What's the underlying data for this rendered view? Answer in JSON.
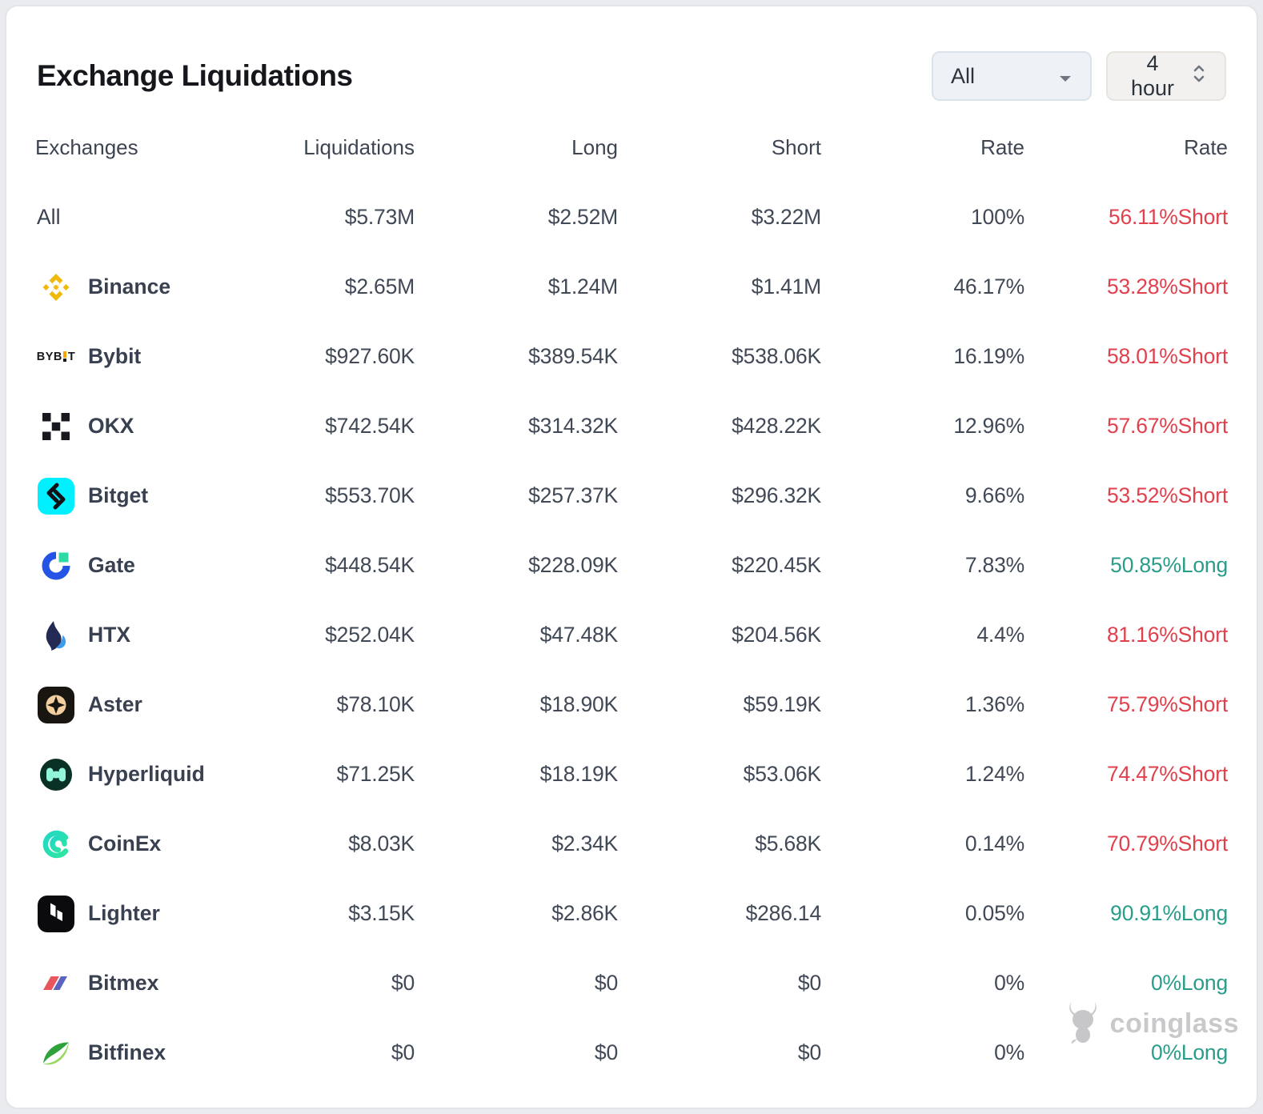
{
  "card": {
    "title": "Exchange Liquidations"
  },
  "controls": {
    "pair_select": {
      "label": "All",
      "icon": "caret-down-icon"
    },
    "interval_select": {
      "label": "4 hour",
      "icon": "select-arrows-icon"
    }
  },
  "table": {
    "columns": [
      "Exchanges",
      "Liquidations",
      "Long",
      "Short",
      "Rate",
      "Rate"
    ],
    "rows": [
      {
        "name": "All",
        "icon": null,
        "liquidations": "$5.73M",
        "long": "$2.52M",
        "short": "$3.22M",
        "rate": "100%",
        "dominance": "56.11%Short",
        "side": "short"
      },
      {
        "name": "Binance",
        "icon": "binance-icon",
        "liquidations": "$2.65M",
        "long": "$1.24M",
        "short": "$1.41M",
        "rate": "46.17%",
        "dominance": "53.28%Short",
        "side": "short"
      },
      {
        "name": "Bybit",
        "icon": "bybit-icon",
        "liquidations": "$927.60K",
        "long": "$389.54K",
        "short": "$538.06K",
        "rate": "16.19%",
        "dominance": "58.01%Short",
        "side": "short"
      },
      {
        "name": "OKX",
        "icon": "okx-icon",
        "liquidations": "$742.54K",
        "long": "$314.32K",
        "short": "$428.22K",
        "rate": "12.96%",
        "dominance": "57.67%Short",
        "side": "short"
      },
      {
        "name": "Bitget",
        "icon": "bitget-icon",
        "liquidations": "$553.70K",
        "long": "$257.37K",
        "short": "$296.32K",
        "rate": "9.66%",
        "dominance": "53.52%Short",
        "side": "short"
      },
      {
        "name": "Gate",
        "icon": "gate-icon",
        "liquidations": "$448.54K",
        "long": "$228.09K",
        "short": "$220.45K",
        "rate": "7.83%",
        "dominance": "50.85%Long",
        "side": "long"
      },
      {
        "name": "HTX",
        "icon": "htx-icon",
        "liquidations": "$252.04K",
        "long": "$47.48K",
        "short": "$204.56K",
        "rate": "4.4%",
        "dominance": "81.16%Short",
        "side": "short"
      },
      {
        "name": "Aster",
        "icon": "aster-icon",
        "liquidations": "$78.10K",
        "long": "$18.90K",
        "short": "$59.19K",
        "rate": "1.36%",
        "dominance": "75.79%Short",
        "side": "short"
      },
      {
        "name": "Hyperliquid",
        "icon": "hyperliquid-icon",
        "liquidations": "$71.25K",
        "long": "$18.19K",
        "short": "$53.06K",
        "rate": "1.24%",
        "dominance": "74.47%Short",
        "side": "short"
      },
      {
        "name": "CoinEx",
        "icon": "coinex-icon",
        "liquidations": "$8.03K",
        "long": "$2.34K",
        "short": "$5.68K",
        "rate": "0.14%",
        "dominance": "70.79%Short",
        "side": "short"
      },
      {
        "name": "Lighter",
        "icon": "lighter-icon",
        "liquidations": "$3.15K",
        "long": "$2.86K",
        "short": "$286.14",
        "rate": "0.05%",
        "dominance": "90.91%Long",
        "side": "long"
      },
      {
        "name": "Bitmex",
        "icon": "bitmex-icon",
        "liquidations": "$0",
        "long": "$0",
        "short": "$0",
        "rate": "0%",
        "dominance": "0%Long",
        "side": "long"
      },
      {
        "name": "Bitfinex",
        "icon": "bitfinex-icon",
        "liquidations": "$0",
        "long": "$0",
        "short": "$0",
        "rate": "0%",
        "dominance": "0%Long",
        "side": "long"
      }
    ]
  },
  "colors": {
    "short": "#e0414d",
    "long": "#2a9d8a",
    "binance_yellow": "#F0B90B",
    "bitget_cyan": "#00F0FF",
    "gate_blue": "#2354E6",
    "gate_green": "#2FD9A6"
  },
  "watermark": {
    "brand": "coinglass",
    "icon": "coinglass-bull-icon"
  }
}
